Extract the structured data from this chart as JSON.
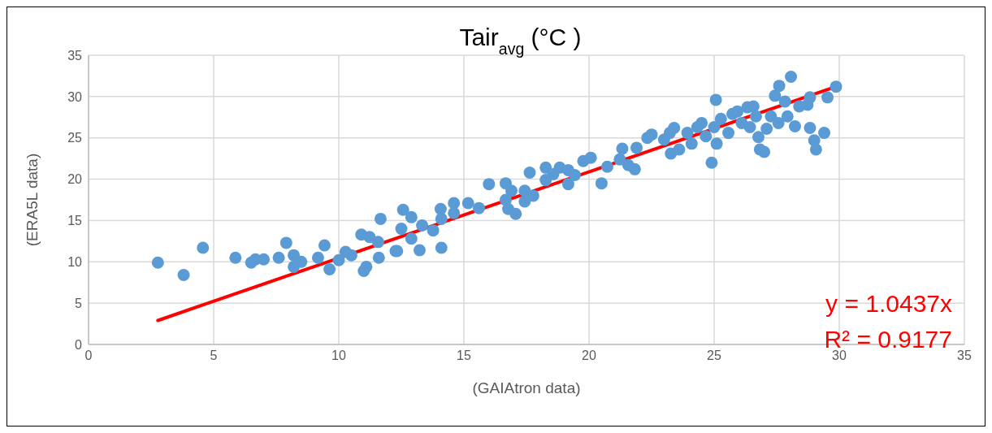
{
  "chart_data": {
    "type": "scatter",
    "title": "Tair$_{avg}$ (°C )",
    "xlabel": "(GAIAtron data)",
    "ylabel": "(ERA5L data)",
    "xlim": [
      0,
      35
    ],
    "xticks": [
      0,
      5,
      10,
      15,
      20,
      25,
      30,
      35
    ],
    "ylim": [
      0,
      35
    ],
    "yticks": [
      0,
      5,
      10,
      15,
      20,
      25,
      30,
      35
    ],
    "grid": true,
    "legend": false,
    "annotations": [
      "y = 1.0437x",
      "R² = 0.9177"
    ],
    "series": [
      {
        "marker": "circle",
        "color": "#5b9bd5",
        "x": [
          2.77,
          3.8,
          4.57,
          5.87,
          6.5,
          6.67,
          7.0,
          7.6,
          7.9,
          8.2,
          8.2,
          8.5,
          9.17,
          9.43,
          9.63,
          10.0,
          10.27,
          10.5,
          10.9,
          11.23,
          11.57,
          11.6,
          11.1,
          11.0,
          11.67,
          12.27,
          12.57,
          12.9,
          12.5,
          12.9,
          13.33,
          13.77,
          12.33,
          13.23,
          14.1,
          14.07,
          14.1,
          14.6,
          14.6,
          15.17,
          15.6,
          16.0,
          16.67,
          16.9,
          16.67,
          16.77,
          17.07,
          17.43,
          17.43,
          17.77,
          17.63,
          18.27,
          18.27,
          18.57,
          18.83,
          19.17,
          19.17,
          19.43,
          19.77,
          20.07,
          20.5,
          20.73,
          21.23,
          21.33,
          21.9,
          21.83,
          21.57,
          23.27,
          22.33,
          22.5,
          23.0,
          23.23,
          23.4,
          23.6,
          23.93,
          24.1,
          24.33,
          24.5,
          24.67,
          24.9,
          25.07,
          25.1,
          25.0,
          25.27,
          25.57,
          25.73,
          25.93,
          26.1,
          26.33,
          26.57,
          26.67,
          26.43,
          26.77,
          26.83,
          27.0,
          27.1,
          27.27,
          27.43,
          27.6,
          28.07,
          27.83,
          27.57,
          27.93,
          28.23,
          28.4,
          28.73,
          28.83,
          28.83,
          29.0,
          29.07,
          29.4,
          29.53,
          29.87
        ],
        "values": [
          9.9,
          8.4,
          11.7,
          10.5,
          9.9,
          10.3,
          10.3,
          10.5,
          12.3,
          10.8,
          9.4,
          10.0,
          10.5,
          12.0,
          9.1,
          10.2,
          11.2,
          10.8,
          13.3,
          13.0,
          12.4,
          10.5,
          9.4,
          8.9,
          15.2,
          11.3,
          16.3,
          15.4,
          14.0,
          12.8,
          14.4,
          13.8,
          11.3,
          11.4,
          11.7,
          16.4,
          15.2,
          17.1,
          15.9,
          17.1,
          16.5,
          19.4,
          19.5,
          18.6,
          17.5,
          16.4,
          15.8,
          18.6,
          17.3,
          18.0,
          20.8,
          21.4,
          19.9,
          20.6,
          21.4,
          21.1,
          19.4,
          20.5,
          22.2,
          22.6,
          19.5,
          21.5,
          22.4,
          23.7,
          23.8,
          21.2,
          21.7,
          23.1,
          25.0,
          25.4,
          24.8,
          25.6,
          26.2,
          23.6,
          25.6,
          24.3,
          26.3,
          26.8,
          25.2,
          22.0,
          29.6,
          24.3,
          26.3,
          27.3,
          25.6,
          27.9,
          28.2,
          26.8,
          28.7,
          28.8,
          27.6,
          26.3,
          25.1,
          23.6,
          23.3,
          26.1,
          27.6,
          30.1,
          31.3,
          32.4,
          29.4,
          26.8,
          27.6,
          26.4,
          28.8,
          29.0,
          29.9,
          26.2,
          24.7,
          23.6,
          25.6,
          29.9,
          31.2
        ]
      },
      {
        "type": "line",
        "marker": "none",
        "color": "#ff0000",
        "x": [
          2.77,
          29.87
        ],
        "values": [
          2.9,
          31.2
        ]
      }
    ]
  }
}
